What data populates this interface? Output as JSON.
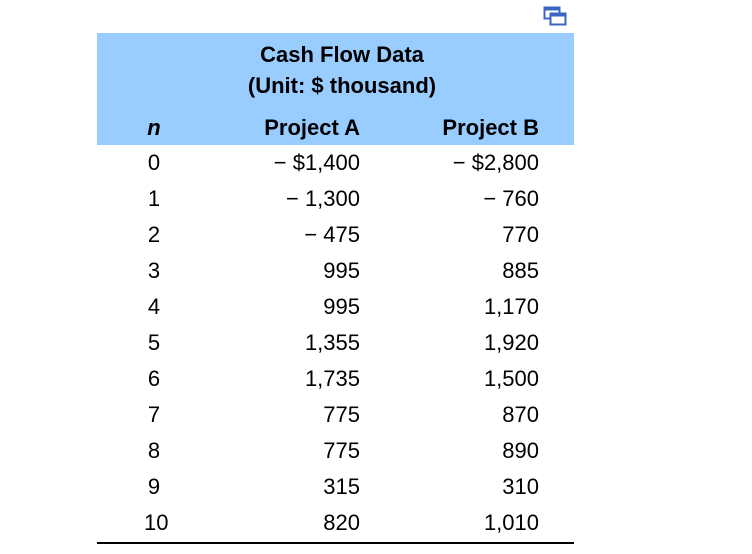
{
  "table": {
    "title_line1": "Cash Flow Data",
    "title_line2": "(Unit: $ thousand)",
    "headers": {
      "n": "n",
      "a": "Project A",
      "b": "Project B"
    },
    "rows": [
      {
        "n": "0",
        "a": "− $1,400",
        "b": "− $2,800"
      },
      {
        "n": "1",
        "a": "− 1,300",
        "b": "− 760"
      },
      {
        "n": "2",
        "a": "− 475",
        "b": "770"
      },
      {
        "n": "3",
        "a": "995",
        "b": "885"
      },
      {
        "n": "4",
        "a": "995",
        "b": "1,170"
      },
      {
        "n": "5",
        "a": "1,355",
        "b": "1,920"
      },
      {
        "n": "6",
        "a": "1,735",
        "b": "1,500"
      },
      {
        "n": "7",
        "a": "775",
        "b": "870"
      },
      {
        "n": "8",
        "a": "775",
        "b": "890"
      },
      {
        "n": "9",
        "a": "315",
        "b": "310"
      },
      {
        "n": "10",
        "a": "820",
        "b": "1,010"
      }
    ]
  },
  "icons": {
    "copy": "copy-icon"
  },
  "colors": {
    "header_band": "#99ccff",
    "icon_stroke": "#3a66c4"
  }
}
